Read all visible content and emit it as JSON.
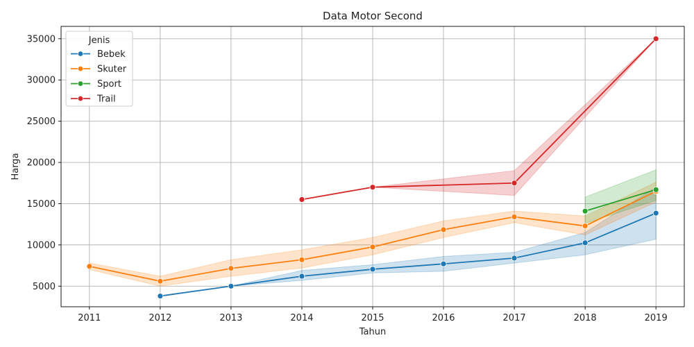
{
  "chart_data": {
    "type": "line",
    "title": "Data Motor Second",
    "xlabel": "Tahun",
    "ylabel": "Harga",
    "xlim": [
      2010.6,
      2019.4
    ],
    "ylim": [
      2500,
      36500
    ],
    "xticks": [
      2011,
      2012,
      2013,
      2014,
      2015,
      2016,
      2017,
      2018,
      2019
    ],
    "yticks": [
      5000,
      10000,
      15000,
      20000,
      25000,
      30000,
      35000
    ],
    "grid": true,
    "legend": {
      "title": "Jenis",
      "placement": "top-left"
    },
    "series": [
      {
        "name": "Bebek",
        "color": "#1f77b4",
        "x": [
          2012,
          2013,
          2014,
          2015,
          2016,
          2017,
          2018,
          2019
        ],
        "values": [
          3800,
          5000,
          6200,
          7050,
          7700,
          8400,
          10250,
          13850
        ],
        "ci_low": [
          3800,
          5000,
          5700,
          6600,
          6800,
          7800,
          8800,
          10700
        ],
        "ci_high": [
          3800,
          5000,
          6900,
          7600,
          8600,
          9100,
          11500,
          17000
        ]
      },
      {
        "name": "Skuter",
        "color": "#ff7f0e",
        "x": [
          2011,
          2012,
          2013,
          2014,
          2015,
          2016,
          2017,
          2018,
          2019
        ],
        "values": [
          7400,
          5600,
          7150,
          8200,
          9750,
          11850,
          13400,
          12300,
          16500
        ],
        "ci_low": [
          7000,
          5000,
          6200,
          7200,
          8800,
          10900,
          12700,
          11200,
          15200
        ],
        "ci_high": [
          7800,
          6200,
          8200,
          9400,
          10900,
          12900,
          14100,
          13500,
          17600
        ]
      },
      {
        "name": "Sport",
        "color": "#2ca02c",
        "x": [
          2018,
          2019
        ],
        "values": [
          14100,
          16700
        ],
        "ci_low": [
          12600,
          15400
        ],
        "ci_high": [
          15800,
          19100
        ]
      },
      {
        "name": "Trail",
        "color": "#d62728",
        "x": [
          2014,
          2015,
          2017,
          2019
        ],
        "values": [
          15500,
          17000,
          17500,
          35000
        ],
        "ci_low": [
          15500,
          17000,
          16000,
          35000
        ],
        "ci_high": [
          15500,
          17000,
          19000,
          35000
        ]
      }
    ]
  }
}
